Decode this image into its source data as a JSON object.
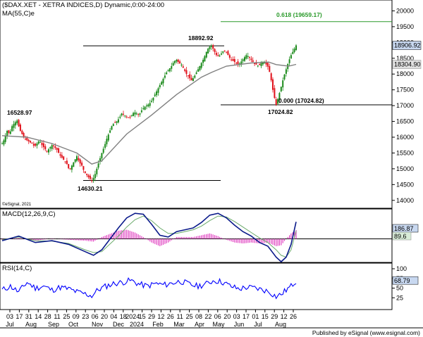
{
  "header": {
    "title": "($DAX.XET - XETRA INDICES,D) Dynamic,0:00-24:00",
    "ma_label": "MA(55,C)e",
    "macd_label": "MACD(12,26,9,C)",
    "rsi_label": "RSI(14,C)",
    "copyright": "©eSignal, 2021",
    "footer": "Published by eSignal (www.esignal.com)"
  },
  "colors": {
    "candle_up": "#1a8a1a",
    "candle_down": "#e0101a",
    "ma_line": "#808080",
    "fib_line": "#2a9a2a",
    "macd_line": "#0a1a8a",
    "signal_line": "#6aaa6a",
    "histogram": "#e040c0",
    "rsi_line": "#0000ff",
    "price_tag_bg": "#c8d8f0"
  },
  "chart_data": [
    {
      "type": "candlestick",
      "title": "($DAX.XET - XETRA INDICES,D) Dynamic,0:00-24:00",
      "ylim": [
        13750,
        20300
      ],
      "yticks": [
        14000,
        14500,
        15000,
        15500,
        16000,
        16500,
        17000,
        17500,
        18000,
        18500,
        19000,
        19500,
        20000
      ],
      "x_date_labels": [
        "03",
        "17",
        "31",
        "14",
        "28",
        "11",
        "25",
        "09",
        "23",
        "06",
        "20",
        "04",
        "18",
        "2024",
        "15",
        "29",
        "12",
        "26",
        "11",
        "25",
        "08",
        "22",
        "06",
        "20",
        "03",
        "17",
        "01",
        "15",
        "29",
        "12",
        "26"
      ],
      "x_month_labels": [
        "Jul",
        "Aug",
        "Sep",
        "Oct",
        "Nov",
        "Dec",
        "2024",
        "Feb",
        "Mar",
        "Apr",
        "May",
        "Jun",
        "Jul",
        "Aug"
      ],
      "overlay": "MA(55,C)e",
      "last_price_label": "18906.92",
      "ma_value_label": "18304.90",
      "annotations": [
        {
          "label": "16528.97",
          "value": 16528.97
        },
        {
          "label": "14630.21",
          "value": 14630.21
        },
        {
          "label": "18892.92",
          "value": 18892.92
        },
        {
          "label": "17024.82",
          "value": 17024.82
        },
        {
          "label": "0.618 (19659.17)",
          "value": 19659.17
        },
        {
          "label": "0.000 (17024.82)",
          "value": 17024.82
        }
      ],
      "price_path": [
        [
          0,
          15800
        ],
        [
          3,
          15950
        ],
        [
          6,
          16200
        ],
        [
          9,
          16100
        ],
        [
          12,
          16350
        ],
        [
          15,
          16450
        ],
        [
          18,
          16529
        ],
        [
          21,
          16250
        ],
        [
          24,
          16100
        ],
        [
          27,
          15950
        ],
        [
          30,
          15900
        ],
        [
          33,
          15850
        ],
        [
          36,
          15800
        ],
        [
          39,
          15700
        ],
        [
          42,
          15800
        ],
        [
          45,
          15900
        ],
        [
          48,
          15750
        ],
        [
          51,
          15650
        ],
        [
          54,
          15550
        ],
        [
          57,
          15650
        ],
        [
          60,
          15750
        ],
        [
          63,
          15700
        ],
        [
          66,
          15600
        ],
        [
          69,
          15450
        ],
        [
          72,
          15350
        ],
        [
          75,
          15250
        ],
        [
          78,
          15150
        ],
        [
          81,
          14950
        ],
        [
          84,
          15100
        ],
        [
          87,
          15250
        ],
        [
          90,
          15400
        ],
        [
          93,
          15200
        ],
        [
          96,
          15100
        ],
        [
          99,
          14900
        ],
        [
          102,
          14800
        ],
        [
          105,
          14700
        ],
        [
          108,
          14630
        ],
        [
          111,
          14750
        ],
        [
          114,
          15000
        ],
        [
          117,
          15250
        ],
        [
          120,
          15500
        ],
        [
          123,
          15700
        ],
        [
          126,
          15950
        ],
        [
          129,
          16150
        ],
        [
          132,
          16350
        ],
        [
          135,
          16450
        ],
        [
          138,
          16500
        ],
        [
          141,
          16600
        ],
        [
          144,
          16750
        ],
        [
          147,
          16700
        ],
        [
          150,
          16650
        ],
        [
          153,
          16600
        ],
        [
          156,
          16700
        ],
        [
          159,
          16800
        ],
        [
          162,
          16750
        ],
        [
          165,
          16700
        ],
        [
          168,
          16850
        ],
        [
          171,
          16950
        ],
        [
          174,
          17000
        ],
        [
          177,
          17050
        ],
        [
          180,
          17150
        ],
        [
          183,
          17300
        ],
        [
          186,
          17450
        ],
        [
          189,
          17600
        ],
        [
          192,
          17750
        ],
        [
          195,
          17900
        ],
        [
          198,
          18050
        ],
        [
          201,
          18150
        ],
        [
          204,
          18250
        ],
        [
          207,
          18400
        ],
        [
          210,
          18450
        ],
        [
          213,
          18350
        ],
        [
          216,
          18300
        ],
        [
          219,
          18150
        ],
        [
          222,
          18000
        ],
        [
          225,
          17900
        ],
        [
          228,
          17800
        ],
        [
          231,
          17900
        ],
        [
          234,
          18050
        ],
        [
          237,
          18200
        ],
        [
          240,
          18350
        ],
        [
          243,
          18500
        ],
        [
          246,
          18700
        ],
        [
          249,
          18850
        ],
        [
          252,
          18893
        ],
        [
          255,
          18750
        ],
        [
          258,
          18600
        ],
        [
          261,
          18550
        ],
        [
          264,
          18650
        ],
        [
          267,
          18750
        ],
        [
          270,
          18700
        ],
        [
          273,
          18550
        ],
        [
          276,
          18450
        ],
        [
          279,
          18400
        ],
        [
          282,
          18350
        ],
        [
          285,
          18300
        ],
        [
          288,
          18400
        ],
        [
          291,
          18500
        ],
        [
          294,
          18600
        ],
        [
          297,
          18550
        ],
        [
          300,
          18450
        ],
        [
          303,
          18350
        ],
        [
          306,
          18300
        ],
        [
          309,
          18250
        ],
        [
          312,
          18350
        ],
        [
          315,
          18400
        ],
        [
          318,
          18300
        ],
        [
          321,
          18200
        ],
        [
          324,
          17800
        ],
        [
          327,
          17350
        ],
        [
          330,
          17025
        ],
        [
          333,
          17300
        ],
        [
          336,
          17600
        ],
        [
          339,
          17900
        ],
        [
          342,
          18150
        ],
        [
          345,
          18400
        ],
        [
          348,
          18600
        ],
        [
          351,
          18750
        ],
        [
          354,
          18907
        ]
      ],
      "ma_path": [
        [
          0,
          16050
        ],
        [
          30,
          16000
        ],
        [
          60,
          15800
        ],
        [
          90,
          15500
        ],
        [
          108,
          15150
        ],
        [
          120,
          15250
        ],
        [
          150,
          16100
        ],
        [
          180,
          16700
        ],
        [
          210,
          17350
        ],
        [
          240,
          17900
        ],
        [
          252,
          18050
        ],
        [
          270,
          18250
        ],
        [
          300,
          18350
        ],
        [
          321,
          18380
        ],
        [
          330,
          18300
        ],
        [
          345,
          18250
        ],
        [
          354,
          18305
        ]
      ]
    },
    {
      "type": "line",
      "title": "MACD(12,26,9,C)",
      "ylim": [
        -250,
        320
      ],
      "last_macd_label": "186.87",
      "last_signal_label": "89.6",
      "macd": [
        [
          0,
          -20
        ],
        [
          20,
          30
        ],
        [
          40,
          -40
        ],
        [
          60,
          -20
        ],
        [
          80,
          -60
        ],
        [
          100,
          -140
        ],
        [
          110,
          -180
        ],
        [
          120,
          -120
        ],
        [
          140,
          120
        ],
        [
          150,
          230
        ],
        [
          160,
          280
        ],
        [
          170,
          270
        ],
        [
          180,
          160
        ],
        [
          190,
          40
        ],
        [
          200,
          20
        ],
        [
          210,
          80
        ],
        [
          220,
          100
        ],
        [
          230,
          120
        ],
        [
          240,
          180
        ],
        [
          250,
          260
        ],
        [
          260,
          280
        ],
        [
          270,
          230
        ],
        [
          280,
          150
        ],
        [
          290,
          80
        ],
        [
          300,
          30
        ],
        [
          310,
          -40
        ],
        [
          320,
          -80
        ],
        [
          330,
          -200
        ],
        [
          336,
          -250
        ],
        [
          342,
          -200
        ],
        [
          348,
          -60
        ],
        [
          354,
          187
        ]
      ],
      "signal": [
        [
          0,
          -10
        ],
        [
          20,
          20
        ],
        [
          40,
          -20
        ],
        [
          60,
          -25
        ],
        [
          80,
          -50
        ],
        [
          100,
          -120
        ],
        [
          110,
          -150
        ],
        [
          120,
          -140
        ],
        [
          140,
          30
        ],
        [
          150,
          130
        ],
        [
          160,
          210
        ],
        [
          170,
          250
        ],
        [
          180,
          200
        ],
        [
          190,
          120
        ],
        [
          200,
          60
        ],
        [
          210,
          60
        ],
        [
          220,
          80
        ],
        [
          230,
          100
        ],
        [
          240,
          140
        ],
        [
          250,
          200
        ],
        [
          260,
          250
        ],
        [
          270,
          240
        ],
        [
          280,
          190
        ],
        [
          290,
          130
        ],
        [
          300,
          70
        ],
        [
          310,
          10
        ],
        [
          320,
          -40
        ],
        [
          330,
          -120
        ],
        [
          336,
          -180
        ],
        [
          342,
          -200
        ],
        [
          348,
          -120
        ],
        [
          354,
          90
        ]
      ]
    },
    {
      "type": "line",
      "title": "RSI(14,C)",
      "ylim": [
        0,
        100
      ],
      "yticks": [
        25,
        50,
        75,
        100
      ],
      "last_label": "68.79",
      "rsi": [
        [
          0,
          45
        ],
        [
          10,
          55
        ],
        [
          20,
          40
        ],
        [
          30,
          65
        ],
        [
          40,
          50
        ],
        [
          50,
          55
        ],
        [
          60,
          45
        ],
        [
          70,
          52
        ],
        [
          80,
          48
        ],
        [
          90,
          40
        ],
        [
          100,
          35
        ],
        [
          108,
          30
        ],
        [
          115,
          45
        ],
        [
          125,
          55
        ],
        [
          135,
          62
        ],
        [
          145,
          65
        ],
        [
          155,
          70
        ],
        [
          165,
          60
        ],
        [
          175,
          55
        ],
        [
          185,
          62
        ],
        [
          195,
          58
        ],
        [
          205,
          63
        ],
        [
          215,
          68
        ],
        [
          225,
          60
        ],
        [
          235,
          55
        ],
        [
          245,
          60
        ],
        [
          255,
          70
        ],
        [
          265,
          66
        ],
        [
          275,
          55
        ],
        [
          285,
          48
        ],
        [
          295,
          52
        ],
        [
          305,
          50
        ],
        [
          315,
          45
        ],
        [
          322,
          40
        ],
        [
          330,
          28
        ],
        [
          336,
          34
        ],
        [
          342,
          45
        ],
        [
          348,
          55
        ],
        [
          354,
          69
        ]
      ]
    }
  ]
}
